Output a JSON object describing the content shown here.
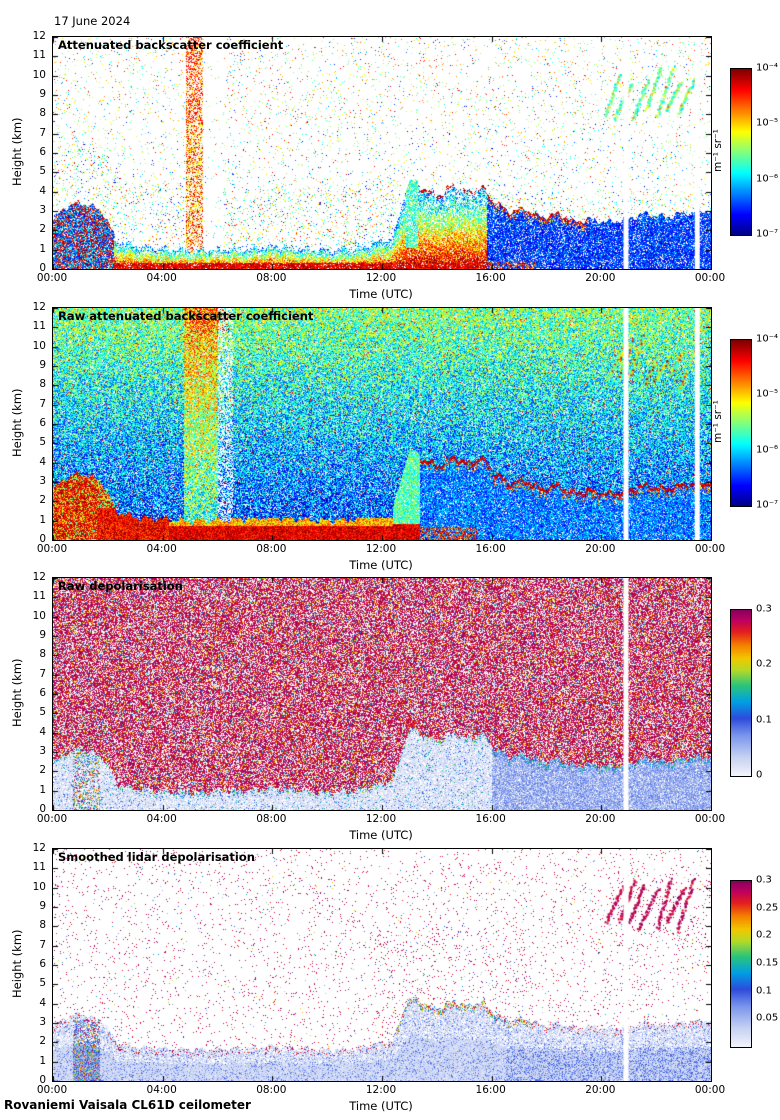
{
  "page": {
    "date_label": "17 June 2024",
    "footer": "Rovaniemi Vaisala CL61D ceilometer"
  },
  "chart_data": {
    "type": "heatmap",
    "axes": {
      "x_label": "Time (UTC)",
      "y_label": "Height (km)",
      "x_ticks": [
        "00:00",
        "04:00",
        "08:00",
        "12:00",
        "16:00",
        "20:00",
        "00:00"
      ],
      "x_range_hours": [
        0,
        24
      ],
      "y_ticks": [
        0,
        1,
        2,
        3,
        4,
        5,
        6,
        7,
        8,
        9,
        10,
        11,
        12
      ],
      "y_range_km": [
        0,
        12
      ]
    },
    "aerosol_layer_top_km": [
      [
        0,
        2.6
      ],
      [
        0.4,
        3.2
      ],
      [
        1.0,
        3.5
      ],
      [
        1.8,
        3.0
      ],
      [
        2.3,
        1.5
      ],
      [
        3,
        1.2
      ],
      [
        4,
        1.1
      ],
      [
        5,
        1.0
      ],
      [
        6,
        1.05
      ],
      [
        7,
        1.1
      ],
      [
        8,
        1.25
      ],
      [
        9,
        1.1
      ],
      [
        10,
        1.0
      ],
      [
        11,
        1.1
      ],
      [
        11.8,
        1.4
      ],
      [
        12.4,
        1.7
      ],
      [
        12.9,
        4.4
      ],
      [
        13.2,
        4.6
      ],
      [
        13.6,
        4.1
      ],
      [
        14.1,
        3.9
      ],
      [
        14.6,
        4.4
      ],
      [
        15.1,
        4.0
      ],
      [
        15.6,
        4.35
      ],
      [
        16.1,
        3.5
      ],
      [
        16.6,
        3.0
      ],
      [
        17.2,
        3.15
      ],
      [
        17.8,
        2.7
      ],
      [
        18.4,
        2.9
      ],
      [
        19,
        2.5
      ],
      [
        19.6,
        2.6
      ],
      [
        20.2,
        2.45
      ],
      [
        20.9,
        2.6
      ],
      [
        21.6,
        2.9
      ],
      [
        22.3,
        2.7
      ],
      [
        23.1,
        2.95
      ],
      [
        24,
        3.05
      ]
    ],
    "virga_streaks": {
      "t_start": 20.7,
      "t_end": 23.4,
      "h_top_km": 10.6,
      "h_bottom_km": 7.6,
      "count": 7
    },
    "panels": [
      {
        "title": "Attenuated backscatter coefficient",
        "kind": "backscatter_sparse",
        "colormap": "jet",
        "gap_times_utc": [
          20.9,
          23.5
        ],
        "colorbar": {
          "scale": "log",
          "unit": "m⁻¹ sr⁻¹",
          "range": [
            "1e-7",
            "1e-4"
          ],
          "ticks": [
            {
              "label": "10⁻⁴",
              "pos": 0
            },
            {
              "label": "10⁻⁵",
              "pos": 0.333
            },
            {
              "label": "10⁻⁶",
              "pos": 0.667
            },
            {
              "label": "10⁻⁷",
              "pos": 1
            }
          ]
        },
        "description": "Sparse clear-air speckle aloft; strong boundary-layer aerosol (red, ~1e-4) below 1 km all day, up to 3.5 km before 02:00 and 3.5-4.5 km 13:00-16:30; dense low blue haze after 16:00 up to ~3 km; elevated orange column near 05:00-05:30; green virga streaks 7.5-10.5 km 21:00-23:30; white data gaps near 20:55 and 23:30."
      },
      {
        "title": "Raw attenuated backscatter coefficient",
        "kind": "backscatter_raw",
        "colormap": "jet",
        "gap_times_utc": [
          20.9,
          23.5
        ],
        "colorbar": {
          "scale": "log",
          "unit": "m⁻¹ sr⁻¹",
          "range": [
            "1e-7",
            "1e-4"
          ],
          "ticks": [
            {
              "label": "10⁻⁴",
              "pos": 0
            },
            {
              "label": "10⁻⁵",
              "pos": 0.333
            },
            {
              "label": "10⁻⁶",
              "pos": 0.667
            },
            {
              "label": "10⁻⁷",
              "pos": 1
            }
          ]
        },
        "description": "Range-dependent noise (blue with increasing green speckle aloft) over full 0-12 km; strong red surface layer; thick red-orange region up to ~3.5 km 00:00-04:00; bright yellow-green column 05:00-06:00 followed by a pale column; red layer-top line 13:00-20:00 near 3-4.5 km; dense blue below the line after 16:00; colored virga streaks 21:00-23:30; data gaps near 20:55 and 23:30."
      },
      {
        "title": "Raw depolarisation",
        "kind": "depol_raw",
        "colormap": "depol",
        "gap_times_utc": [
          20.9
        ],
        "colorbar": {
          "scale": "linear",
          "unit": "",
          "range": [
            0,
            0.3
          ],
          "ticks": [
            {
              "label": "0.3",
              "pos": 0
            },
            {
              "label": "0.2",
              "pos": 0.333
            },
            {
              "label": "0.1",
              "pos": 0.667
            },
            {
              "label": "0",
              "pos": 1
            }
          ]
        },
        "description": "Dense magenta noise (depolarisation near 0.3) above the boundary layer; low depolarisation (<0.1, whitish-blue) inside the aerosol layer below ~1 km (up to ~3 km before 02:00 and 13:00-16:30); blue band up to ~3 km after 16:00; mixed colourful column near 01:00; data gap near 20:55."
      },
      {
        "title": "Smoothed lidar depolarisation",
        "kind": "depol_smooth",
        "colormap": "depol",
        "gap_times_utc": [
          20.9
        ],
        "colorbar": {
          "scale": "linear",
          "unit": "",
          "range": [
            0,
            0.3
          ],
          "ticks": [
            {
              "label": "0.3",
              "pos": 0
            },
            {
              "label": "0.25",
              "pos": 0.167
            },
            {
              "label": "0.2",
              "pos": 0.333
            },
            {
              "label": "0.15",
              "pos": 0.5
            },
            {
              "label": "0.1",
              "pos": 0.667
            },
            {
              "label": "0.05",
              "pos": 0.833
            }
          ]
        },
        "description": "Mostly clear (white) aloft with sparse magenta speckle; low-depolarisation (~0.05, pale blue) boundary layer up to ~2-3.5 km with coloured fringe 13:00-17:00; mixed blue/green/red column near 01:00; dark magenta virga streaks 7-10.5 km 21:00-23:30."
      }
    ]
  }
}
